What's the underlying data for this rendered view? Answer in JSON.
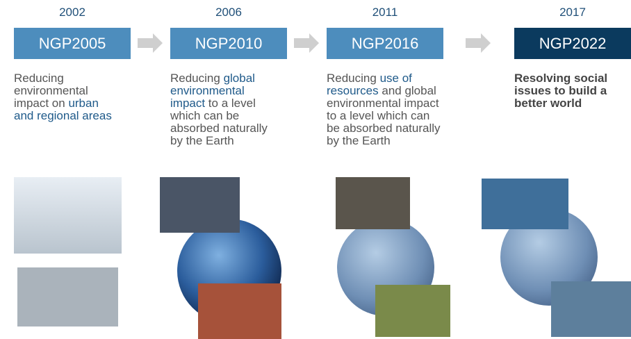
{
  "columns": [
    {
      "year": "2002",
      "label": "NGP2005",
      "current": false,
      "description": [
        [
          {
            "text": "Reducing",
            "highlight": false
          }
        ],
        [
          {
            "text": "environmental",
            "highlight": false
          }
        ],
        [
          {
            "text": "impact on ",
            "highlight": false
          },
          {
            "text": "urban",
            "highlight": true
          }
        ],
        [
          {
            "text": "and regional areas",
            "highlight": true
          }
        ]
      ]
    },
    {
      "year": "2006",
      "label": "NGP2010",
      "current": false,
      "description": [
        [
          {
            "text": "Reducing ",
            "highlight": false
          },
          {
            "text": "global",
            "highlight": true
          }
        ],
        [
          {
            "text": "environmental",
            "highlight": true
          }
        ],
        [
          {
            "text": "impact",
            "highlight": true
          },
          {
            "text": " to a level",
            "highlight": false
          }
        ],
        [
          {
            "text": "which can be",
            "highlight": false
          }
        ],
        [
          {
            "text": "absorbed naturally",
            "highlight": false
          }
        ],
        [
          {
            "text": "by the Earth",
            "highlight": false
          }
        ]
      ]
    },
    {
      "year": "2011",
      "label": "NGP2016",
      "current": false,
      "description": [
        [
          {
            "text": "Reducing ",
            "highlight": false
          },
          {
            "text": "use of",
            "highlight": true
          }
        ],
        [
          {
            "text": "resources",
            "highlight": true
          },
          {
            "text": " and global",
            "highlight": false
          }
        ],
        [
          {
            "text": "environmental impact",
            "highlight": false
          }
        ],
        [
          {
            "text": "to a level which can",
            "highlight": false
          }
        ],
        [
          {
            "text": "be absorbed naturally",
            "highlight": false
          }
        ],
        [
          {
            "text": "by the Earth",
            "highlight": false
          }
        ]
      ]
    },
    {
      "year": "2017",
      "label": "NGP2022",
      "current": true,
      "description": [
        [
          {
            "text": "Resolving social",
            "highlight": false
          }
        ],
        [
          {
            "text": "issues to build a",
            "highlight": false
          }
        ],
        [
          {
            "text": "better world",
            "highlight": false
          }
        ]
      ]
    }
  ]
}
